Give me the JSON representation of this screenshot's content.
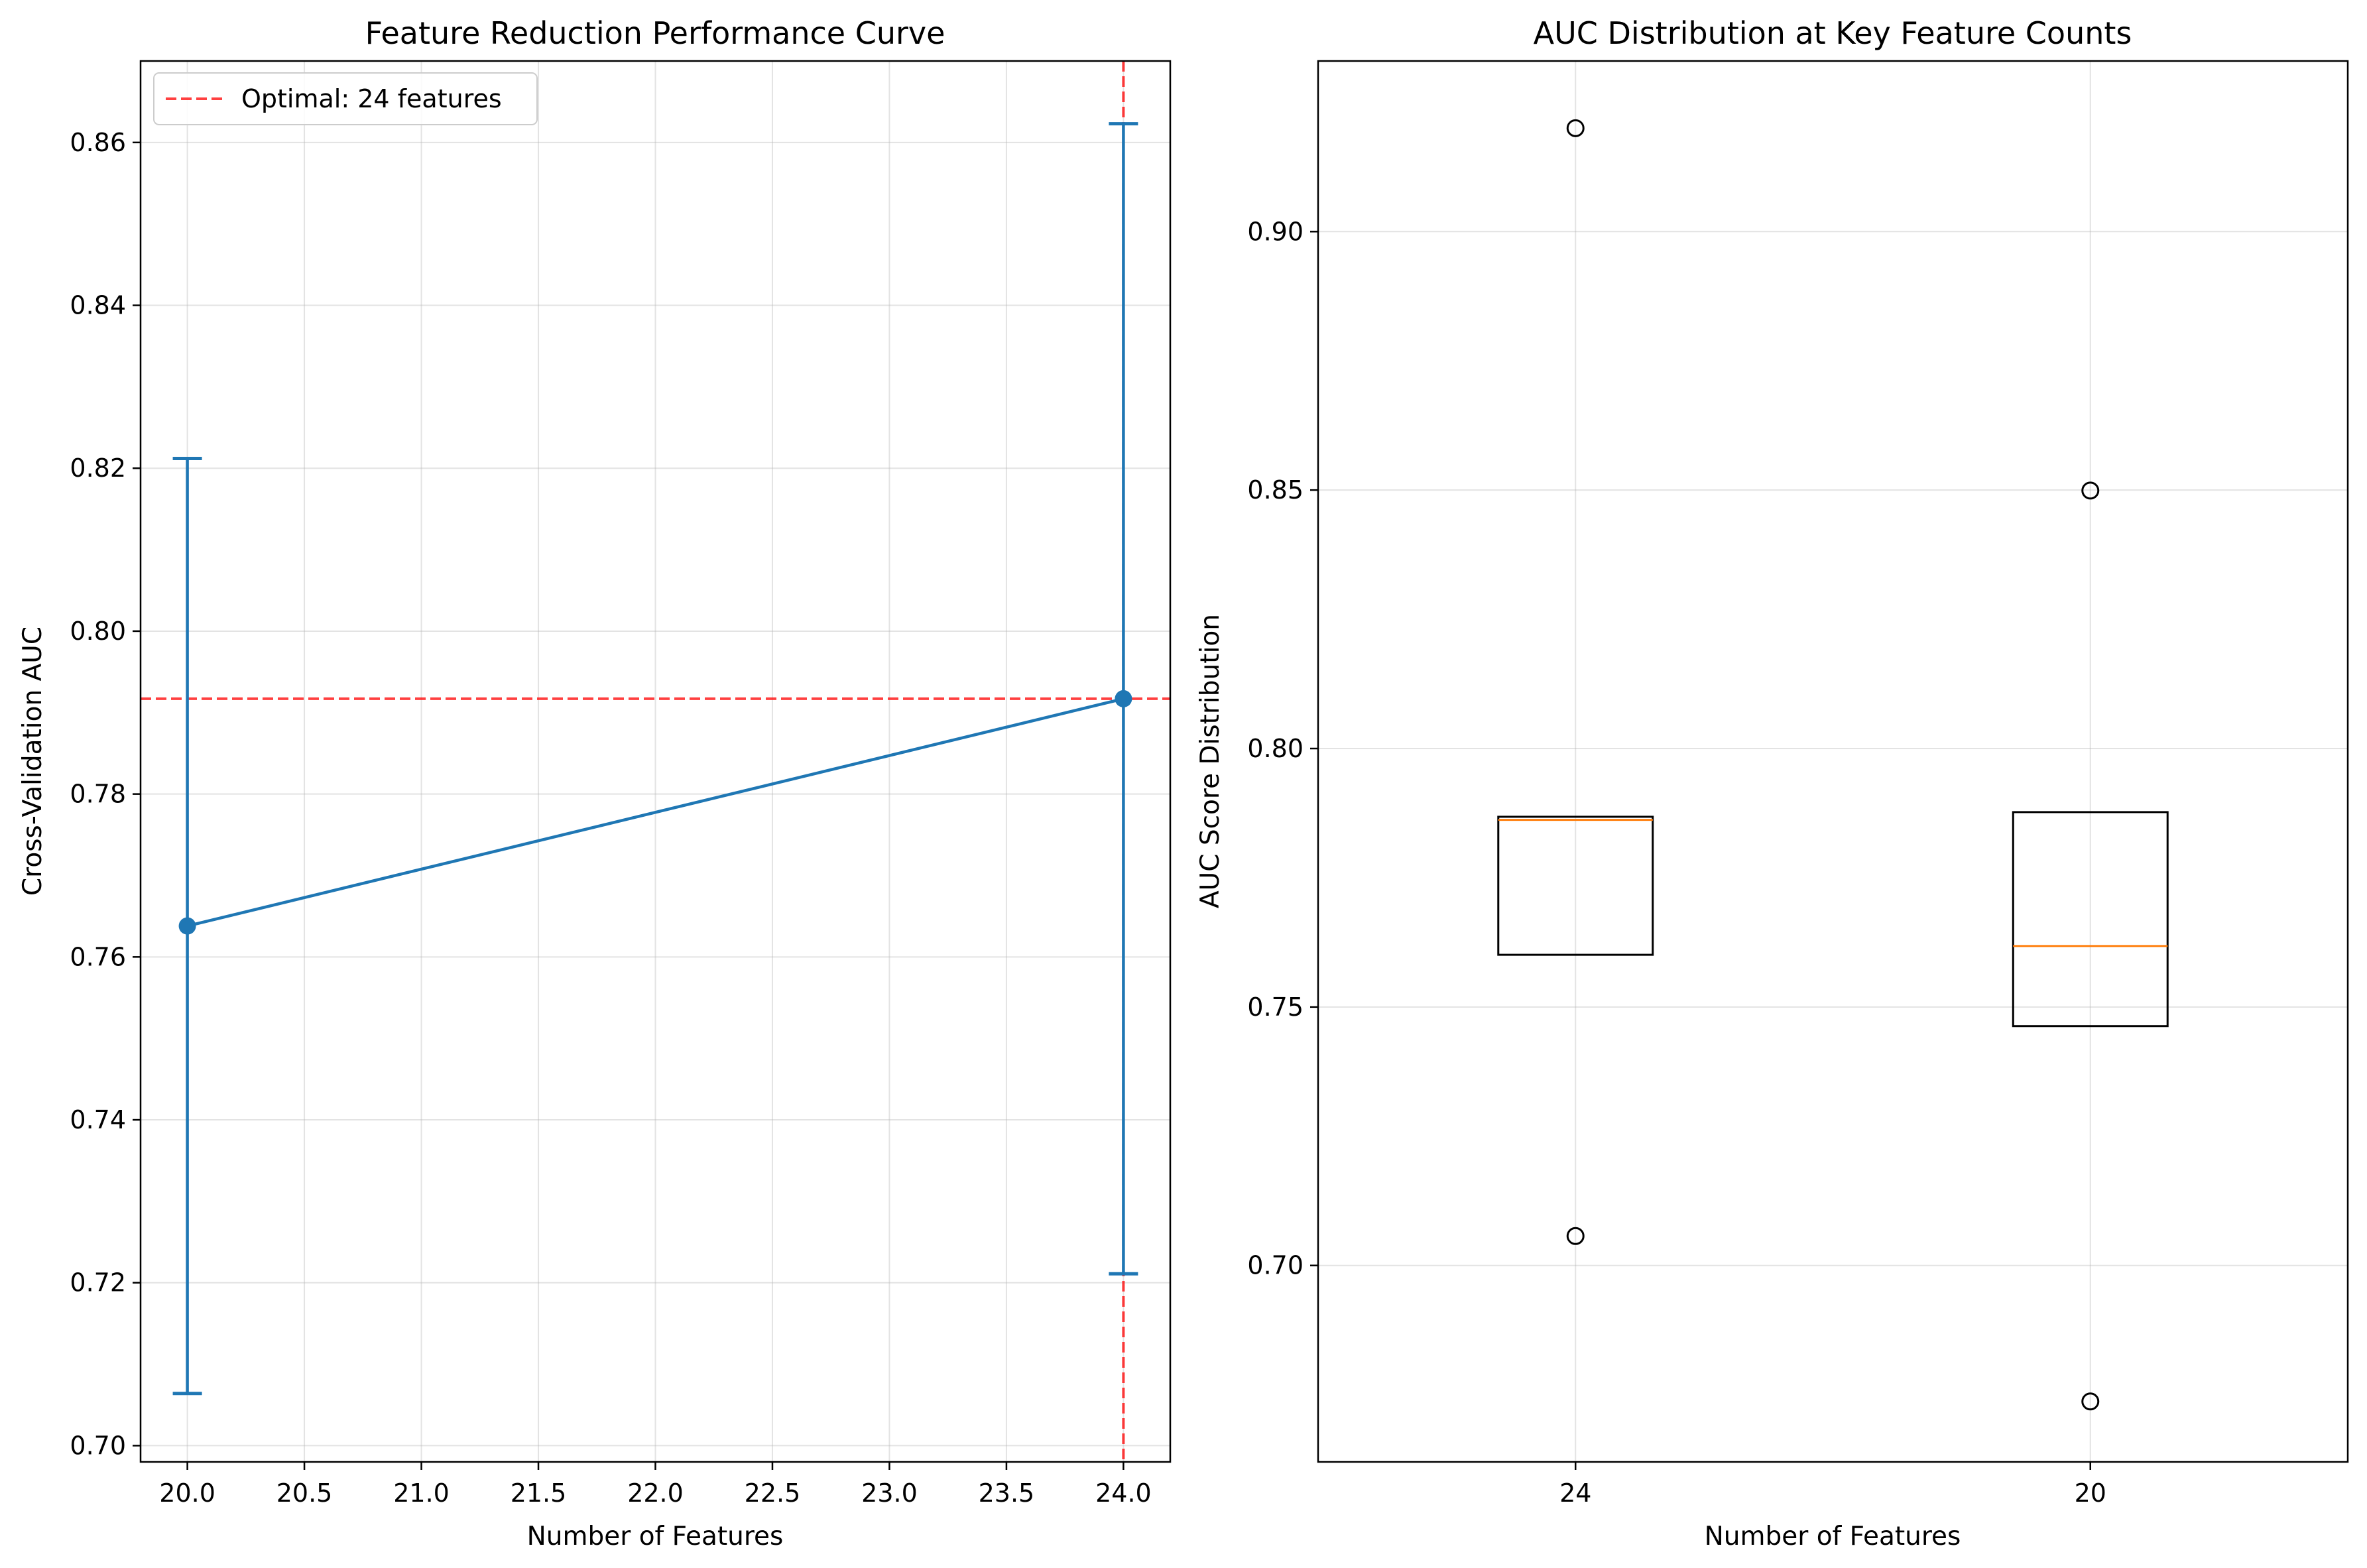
{
  "chart_data": [
    {
      "type": "line",
      "title": "Feature Reduction Performance Curve",
      "xlabel": "Number of Features",
      "ylabel": "Cross-Validation AUC",
      "xlim": [
        19.8,
        24.2
      ],
      "ylim": [
        0.698,
        0.87
      ],
      "xticks": [
        "20.0",
        "20.5",
        "21.0",
        "21.5",
        "22.0",
        "22.5",
        "23.0",
        "23.5",
        "24.0"
      ],
      "yticks": [
        "0.70",
        "0.72",
        "0.74",
        "0.76",
        "0.78",
        "0.80",
        "0.82",
        "0.84",
        "0.86"
      ],
      "grid": true,
      "legend": {
        "position": "top-left",
        "entries": [
          "Optimal: 24 features"
        ]
      },
      "series": [
        {
          "x": [
            20,
            24
          ],
          "y": [
            0.7638,
            0.7917
          ],
          "yerr": [
            0.0574,
            0.0706
          ],
          "color": "#1f77b4"
        }
      ],
      "reference_lines": [
        {
          "orientation": "vertical",
          "value": 24,
          "color": "#ff0000",
          "style": "dashed"
        },
        {
          "orientation": "horizontal",
          "value": 0.7917,
          "color": "#ff0000",
          "style": "dashed"
        }
      ]
    },
    {
      "type": "box",
      "title": "AUC Distribution at Key Feature Counts",
      "xlabel": "Number of Features",
      "ylabel": "AUC Score Distribution",
      "categories": [
        "24",
        "20"
      ],
      "ylim": [
        0.662,
        0.933
      ],
      "yticks": [
        "0.70",
        "0.75",
        "0.80",
        "0.85",
        "0.90"
      ],
      "grid": true,
      "boxes": [
        {
          "q1": 0.7601,
          "median": 0.7862,
          "q3": 0.7868,
          "whisker_low": 0.7601,
          "whisker_high": 0.7868,
          "outliers": [
            0.92,
            0.7057
          ]
        },
        {
          "q1": 0.7463,
          "median": 0.7618,
          "q3": 0.7877,
          "whisker_low": 0.7463,
          "whisker_high": 0.7877,
          "outliers": [
            0.8499,
            0.6737
          ]
        }
      ],
      "colors": {
        "box": "#000000",
        "median": "#ff7f0e"
      }
    }
  ]
}
